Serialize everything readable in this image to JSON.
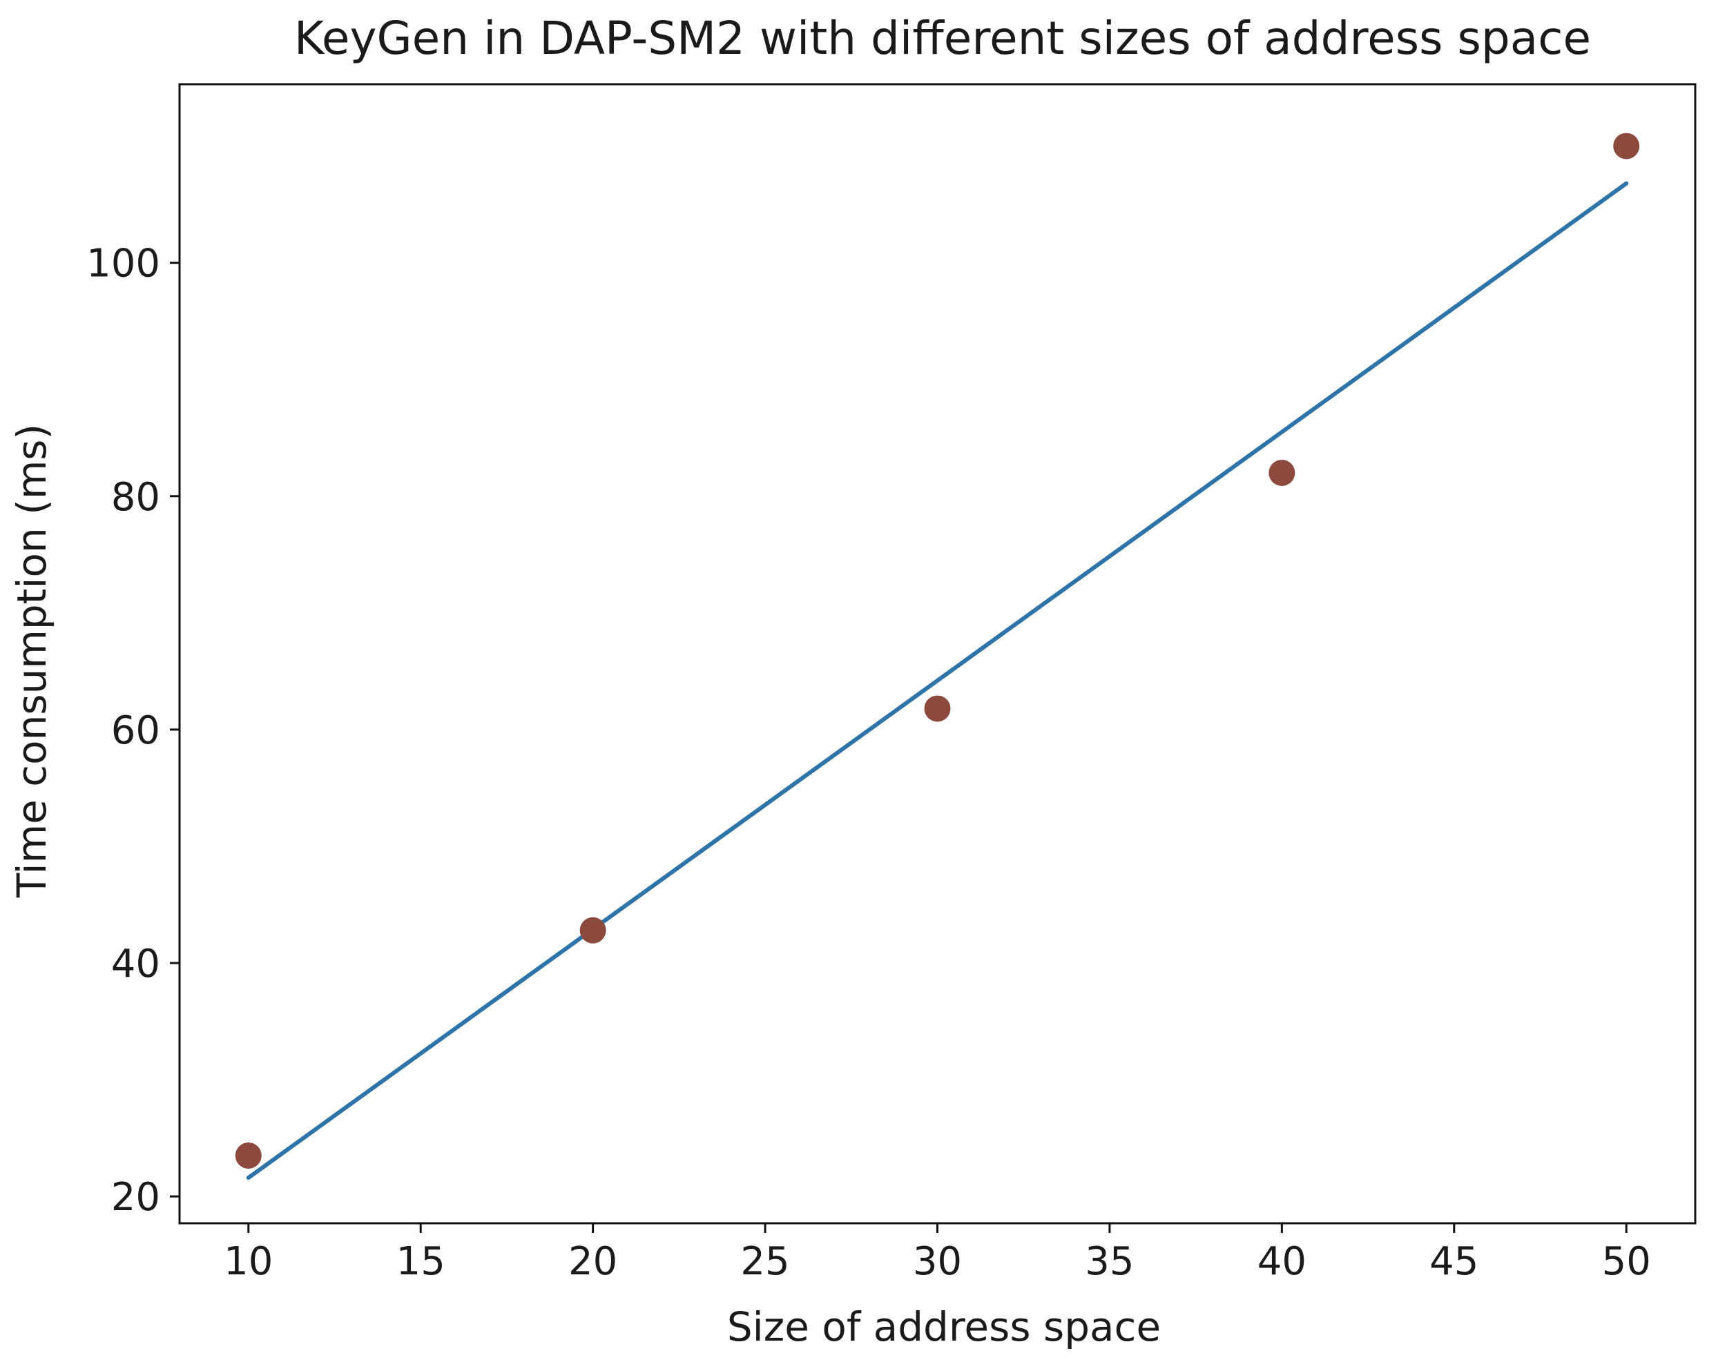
{
  "chart_data": {
    "type": "scatter",
    "title": "KeyGen in DAP-SM2 with different sizes of address space",
    "xlabel": "Size of address space",
    "ylabel": "Time consumption (ms)",
    "xlim": [
      8,
      52
    ],
    "ylim": [
      17.7,
      115.3
    ],
    "xticks": [
      10,
      15,
      20,
      25,
      30,
      35,
      40,
      45,
      50
    ],
    "yticks": [
      20,
      40,
      60,
      80,
      100
    ],
    "grid": false,
    "series": [
      {
        "kind": "points",
        "x": [
          10,
          20,
          30,
          40,
          50
        ],
        "y": [
          23.5,
          42.8,
          61.8,
          82,
          110
        ],
        "color": "#8c4a3f"
      },
      {
        "kind": "fit-line",
        "x": [
          10,
          50
        ],
        "y": [
          21.6,
          106.8
        ],
        "color": "#2e74a8"
      }
    ]
  }
}
